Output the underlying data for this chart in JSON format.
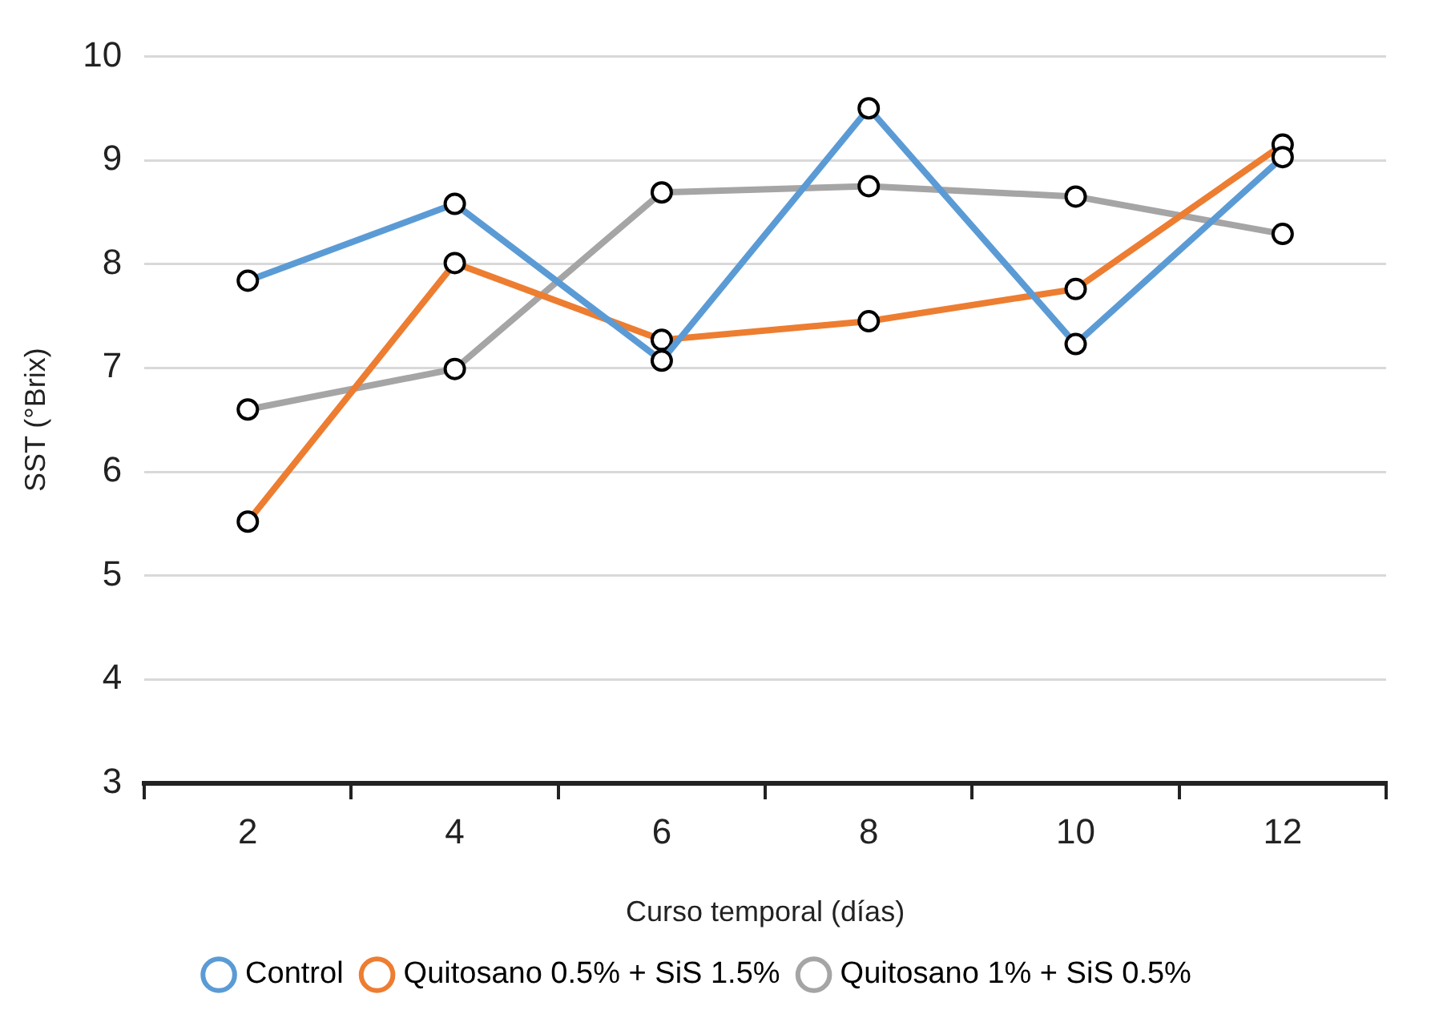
{
  "chart_data": {
    "type": "line",
    "xlabel": "Curso temporal (días)",
    "ylabel": "SST (°Brix)",
    "categories": [
      "2",
      "4",
      "6",
      "8",
      "10",
      "12"
    ],
    "series": [
      {
        "name": "Control",
        "color": "#5b9bd5",
        "values": [
          7.84,
          8.58,
          7.07,
          9.5,
          7.23,
          9.03
        ]
      },
      {
        "name": "Quitosano 0.5% + SiS 1.5%",
        "color": "#ed7d31",
        "values": [
          5.52,
          8.01,
          7.27,
          7.45,
          7.76,
          9.15
        ]
      },
      {
        "name": "Quitosano 1% + SiS 0.5%",
        "color": "#a5a5a5",
        "values": [
          6.6,
          6.99,
          8.69,
          8.75,
          8.65,
          8.29
        ]
      }
    ],
    "ylim": [
      3,
      10
    ],
    "yticks": [
      3,
      4,
      5,
      6,
      7,
      8,
      9,
      10
    ],
    "grid": "y",
    "legend": "bottom",
    "marker": "circle",
    "line_style": "solid"
  }
}
